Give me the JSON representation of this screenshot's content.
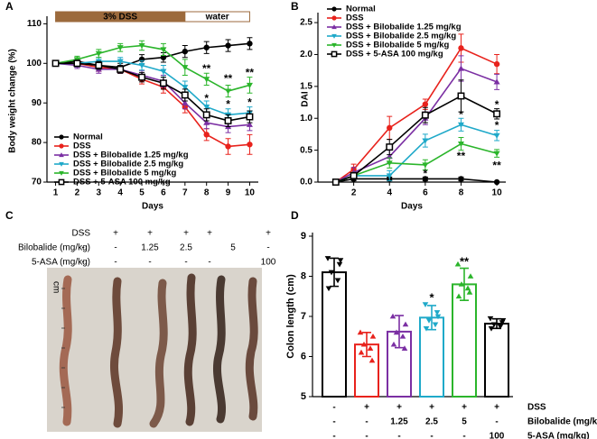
{
  "chart_data": [
    {
      "type": "line",
      "panel_label": "A",
      "x_label": "Days",
      "y_label": "Body weight change (%)",
      "x": [
        1,
        2,
        3,
        4,
        5,
        6,
        7,
        8,
        9,
        10
      ],
      "xlim": [
        0.6,
        10.4
      ],
      "xticks": [
        1,
        2,
        3,
        4,
        5,
        6,
        7,
        8,
        9,
        10
      ],
      "ylim": [
        70,
        111
      ],
      "yticks": [
        70,
        80,
        90,
        100,
        110
      ],
      "legend": "lower left",
      "phases": [
        {
          "label": "3% DSS",
          "start": 1,
          "end": 7,
          "color": "#9c6a3c"
        },
        {
          "label": "water",
          "start": 7,
          "end": 10,
          "color": "#ffffff"
        }
      ],
      "series": [
        {
          "name": "Normal",
          "color": "#000000",
          "marker": "circle",
          "values": [
            100,
            100.5,
            99.5,
            99,
            101,
            101.5,
            103,
            104,
            104.5,
            105
          ],
          "errors": [
            0.3,
            0.8,
            1,
            1,
            1.2,
            1.2,
            1.5,
            1.5,
            1.5,
            1.5
          ]
        },
        {
          "name": "DSS",
          "color": "#e8221c",
          "marker": "circle",
          "values": [
            100,
            100,
            99,
            98.5,
            96,
            94,
            89,
            82,
            79,
            79.5
          ],
          "errors": [
            0.3,
            0.8,
            1,
            1,
            1.2,
            1.5,
            1.5,
            1.5,
            2,
            2.5
          ]
        },
        {
          "name": "DSS + Bilobalide 1.25 mg/kg",
          "color": "#7b2fa3",
          "marker": "tri-up",
          "values": [
            100,
            99.5,
            98.5,
            98.5,
            97,
            95.5,
            90,
            85,
            84,
            84.5
          ],
          "errors": [
            0.3,
            0.8,
            1,
            1,
            1.2,
            1.5,
            1.5,
            1.5,
            1.5,
            1.5
          ]
        },
        {
          "name": "DSS + Bilobalide 2.5 mg/kg",
          "color": "#1fa9c9",
          "marker": "tri-down",
          "values": [
            100,
            100,
            100.5,
            100.5,
            99.5,
            98,
            94,
            89,
            87,
            87.5
          ],
          "errors": [
            0.3,
            0.8,
            1,
            1,
            1.2,
            1.5,
            1.5,
            1.5,
            1.5,
            1.5
          ]
        },
        {
          "name": "DSS + Bilobalide 5 mg/kg",
          "color": "#2bb52b",
          "marker": "tri-down",
          "values": [
            100,
            101,
            102.5,
            104,
            104.5,
            103.5,
            99,
            96,
            93,
            94.5
          ],
          "errors": [
            0.3,
            0.8,
            1,
            1,
            1.2,
            1.5,
            2,
            1.5,
            1.5,
            2
          ]
        },
        {
          "name": "DSS + 5-ASA  100 mg/kg",
          "color": "#000000",
          "marker": "square",
          "values": [
            100,
            100,
            99.5,
            98.5,
            96.5,
            95,
            92,
            87,
            85.5,
            86.5
          ],
          "errors": [
            0.3,
            0.8,
            1,
            1,
            1.2,
            1.5,
            1.5,
            1.5,
            1.5,
            1.5
          ]
        }
      ],
      "annotations": [
        {
          "text": "**",
          "x": 8,
          "y": 98.5,
          "color": "#2bb52b"
        },
        {
          "text": "**",
          "x": 9,
          "y": 96,
          "color": "#2bb52b"
        },
        {
          "text": "**",
          "x": 10,
          "y": 97.5,
          "color": "#2bb52b"
        },
        {
          "text": "*",
          "x": 8,
          "y": 91,
          "color": "#1fa9c9"
        },
        {
          "text": "*",
          "x": 9,
          "y": 89.5,
          "color": "#1fa9c9"
        },
        {
          "text": "*",
          "x": 10,
          "y": 90,
          "color": "#1fa9c9"
        }
      ]
    },
    {
      "type": "line",
      "panel_label": "B",
      "x_label": "Days",
      "y_label": "DAI",
      "x": [
        1,
        2,
        4,
        6,
        8,
        10
      ],
      "xlim": [
        0,
        10.5
      ],
      "xticks": [
        2,
        4,
        6,
        8,
        10
      ],
      "ylim": [
        0,
        2.6
      ],
      "yticks": [
        {
          "value": 0,
          "label": "0.0"
        },
        {
          "value": 0.5,
          "label": "0.5"
        },
        {
          "value": 1,
          "label": "1.0"
        },
        {
          "value": 1.5,
          "label": "1.5"
        },
        {
          "value": 2,
          "label": "2.0"
        },
        {
          "value": 2.5,
          "label": "2.5"
        }
      ],
      "legend": "upper left",
      "series": [
        {
          "name": "Normal",
          "color": "#000000",
          "marker": "circle",
          "values": [
            0,
            0.05,
            0.05,
            0.05,
            0.05,
            0
          ],
          "errors": [
            0,
            0.03,
            0.03,
            0.03,
            0.03,
            0
          ]
        },
        {
          "name": "DSS",
          "color": "#e8221c",
          "marker": "circle",
          "values": [
            0,
            0.2,
            0.85,
            1.22,
            2.1,
            1.85
          ],
          "errors": [
            0,
            0.08,
            0.18,
            0.08,
            0.22,
            0.15
          ]
        },
        {
          "name": "DSS + Bilobalide 1.25 mg/kg",
          "color": "#7b2fa3",
          "marker": "tri-up",
          "values": [
            0,
            0.15,
            0.4,
            1.0,
            1.78,
            1.57
          ],
          "errors": [
            0,
            0.08,
            0.1,
            0.1,
            0.2,
            0.12
          ]
        },
        {
          "name": "DSS + Bilobalide 2.5 mg/kg",
          "color": "#1fa9c9",
          "marker": "tri-down",
          "values": [
            0,
            0.1,
            0.1,
            0.65,
            0.9,
            0.73
          ],
          "errors": [
            0,
            0.05,
            0.08,
            0.1,
            0.1,
            0.08
          ]
        },
        {
          "name": "DSS + Bilobalide 5 mg/kg",
          "color": "#2bb52b",
          "marker": "tri-down",
          "values": [
            0,
            0.1,
            0.3,
            0.27,
            0.6,
            0.45
          ],
          "errors": [
            0,
            0.05,
            0.08,
            0.08,
            0.1,
            0.06
          ]
        },
        {
          "name": "DSS + 5-ASA 100 mg/kg",
          "color": "#000000",
          "marker": "square",
          "values": [
            0,
            0.1,
            0.55,
            1.05,
            1.35,
            1.07
          ],
          "errors": [
            0,
            0.05,
            0.12,
            0.12,
            0.25,
            0.08
          ]
        }
      ],
      "annotations": [
        {
          "text": "*",
          "x": 6,
          "y": 0.12,
          "color": "#555555"
        },
        {
          "text": "*",
          "x": 8,
          "y": 1.05,
          "color": "#555555"
        },
        {
          "text": "**",
          "x": 8,
          "y": 0.4,
          "color": "#555555"
        },
        {
          "text": "*",
          "x": 10,
          "y": 1.2,
          "color": "#555555"
        },
        {
          "text": "*",
          "x": 10,
          "y": 0.88,
          "color": "#555555"
        },
        {
          "text": "**",
          "x": 10,
          "y": 0.25,
          "color": "#555555"
        }
      ]
    },
    {
      "type": "bar",
      "panel_label": "D",
      "y_label": "Colon length (cm)",
      "ylim": [
        5,
        9
      ],
      "yticks": [
        5,
        6,
        7,
        8,
        9
      ],
      "values": [
        8.1,
        6.3,
        6.62,
        6.97,
        7.8,
        6.82
      ],
      "errors": [
        0.35,
        0.3,
        0.4,
        0.3,
        0.4,
        0.12
      ],
      "colors": [
        "#000000",
        "#e8221c",
        "#7b2fa3",
        "#1fa9c9",
        "#2bb52b",
        "#000000"
      ],
      "markers": [
        "tri-down",
        "tri-up",
        "tri-up",
        "tri-down",
        "tri-up",
        "tri-down"
      ],
      "points": [
        [
          8.45,
          8.4,
          8.1,
          7.9,
          7.7,
          8.3
        ],
        [
          6.6,
          6.5,
          6.3,
          6.2,
          6.1,
          5.9
        ],
        [
          7.0,
          6.8,
          6.6,
          6.5,
          6.3,
          6.2
        ],
        [
          7.3,
          7.0,
          6.9,
          6.8,
          6.7,
          7.1
        ],
        [
          8.3,
          8.0,
          7.8,
          7.7,
          7.5,
          7.6
        ],
        [
          6.95,
          6.9,
          6.8,
          6.75,
          6.7,
          6.85
        ]
      ],
      "row_labels": [
        "DSS",
        "Bilobalide (mg/kg)",
        "5-ASA (mg/kg)"
      ],
      "rows": [
        [
          "-",
          "+",
          "+",
          "+",
          "+",
          "+"
        ],
        [
          "-",
          "-",
          "1.25",
          "2.5",
          "5",
          "-"
        ],
        [
          "-",
          "-",
          "-",
          "-",
          "-",
          "100"
        ]
      ],
      "annotations": [
        {
          "text": "*",
          "index": 3,
          "y": 7.45,
          "color": "#555555"
        },
        {
          "text": "**",
          "index": 4,
          "y": 8.35,
          "color": "#555555"
        }
      ]
    }
  ],
  "photo_panel": {
    "panel_label": "C",
    "ruler_label": "cm",
    "row_labels": [
      "DSS",
      "Bilobalide (mg/kg)",
      "5-ASA (mg/kg)"
    ],
    "rows": [
      [
        "-",
        "+",
        "+",
        "+",
        "+",
        "+"
      ],
      [
        "-",
        "-",
        "1.25",
        "2.5",
        "5",
        "-"
      ],
      [
        "-",
        "-",
        "-",
        "-",
        "-",
        "100"
      ]
    ]
  }
}
